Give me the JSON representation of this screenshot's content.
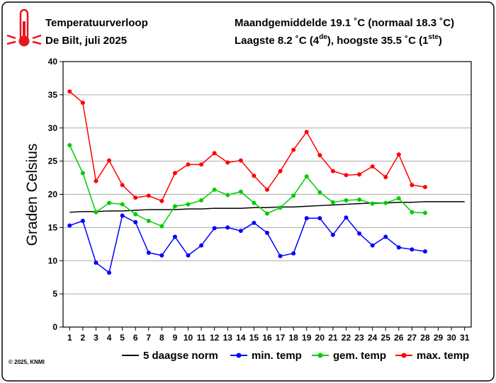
{
  "header": {
    "title": "Temperatuurverloop",
    "subtitle": "De Bilt, juli 2025",
    "summary1": "Maandgemiddelde 19.1 ˚C (normaal 18.3 ˚C)",
    "summary2": [
      "Laagste 8.2 ˚C (4",
      "de",
      "), hoogste 35.5 ˚C (1",
      "ste",
      ")"
    ]
  },
  "footer": "© 2025, KNMI",
  "chart_data": {
    "type": "line",
    "ylabel": "Graden Celsius",
    "categories": [
      "1",
      "2",
      "3",
      "4",
      "5",
      "6",
      "7",
      "8",
      "9",
      "10",
      "11",
      "12",
      "13",
      "14",
      "15",
      "16",
      "17",
      "18",
      "19",
      "20",
      "21",
      "22",
      "23",
      "24",
      "25",
      "26",
      "27",
      "28",
      "29",
      "30",
      "31"
    ],
    "ylim": [
      0,
      40
    ],
    "yticks": [
      0,
      5,
      10,
      15,
      20,
      25,
      30,
      35,
      40
    ],
    "grid": true,
    "series": [
      {
        "name": "5 daagse norm",
        "color": "#000000",
        "markers": false,
        "values": [
          17.3,
          17.4,
          17.4,
          17.5,
          17.5,
          17.6,
          17.7,
          17.7,
          17.7,
          17.8,
          17.8,
          17.9,
          17.9,
          17.9,
          18.0,
          18.0,
          18.1,
          18.1,
          18.2,
          18.3,
          18.4,
          18.5,
          18.6,
          18.7,
          18.7,
          18.8,
          18.8,
          18.9,
          18.9,
          18.9,
          18.9
        ]
      },
      {
        "name": "min. temp",
        "color": "#0000ff",
        "markers": true,
        "values": [
          15.3,
          16.0,
          9.7,
          8.2,
          16.8,
          15.8,
          11.2,
          10.8,
          13.6,
          10.8,
          12.3,
          14.9,
          15.0,
          14.5,
          15.7,
          14.2,
          10.7,
          11.1,
          16.4,
          16.4,
          13.9,
          16.5,
          14.1,
          12.3,
          13.6,
          12.0,
          11.7,
          11.4,
          null,
          null,
          null
        ]
      },
      {
        "name": "gem. temp",
        "color": "#00cc00",
        "markers": true,
        "values": [
          27.4,
          23.2,
          17.3,
          18.7,
          18.5,
          17.0,
          16.0,
          15.2,
          18.2,
          18.5,
          19.1,
          20.7,
          19.9,
          20.4,
          18.7,
          17.1,
          18.0,
          19.8,
          22.7,
          20.3,
          18.8,
          19.1,
          19.2,
          18.6,
          18.7,
          19.4,
          17.3,
          17.2,
          null,
          null,
          null
        ]
      },
      {
        "name": "max. temp",
        "color": "#ff0000",
        "markers": true,
        "values": [
          35.5,
          33.8,
          22.0,
          25.1,
          21.4,
          19.5,
          19.8,
          19.0,
          23.2,
          24.5,
          24.5,
          26.2,
          24.8,
          25.1,
          22.8,
          20.7,
          23.5,
          26.7,
          29.4,
          25.9,
          23.5,
          22.9,
          23.0,
          24.2,
          22.6,
          26.0,
          21.4,
          21.1,
          null,
          null,
          null
        ]
      }
    ]
  }
}
